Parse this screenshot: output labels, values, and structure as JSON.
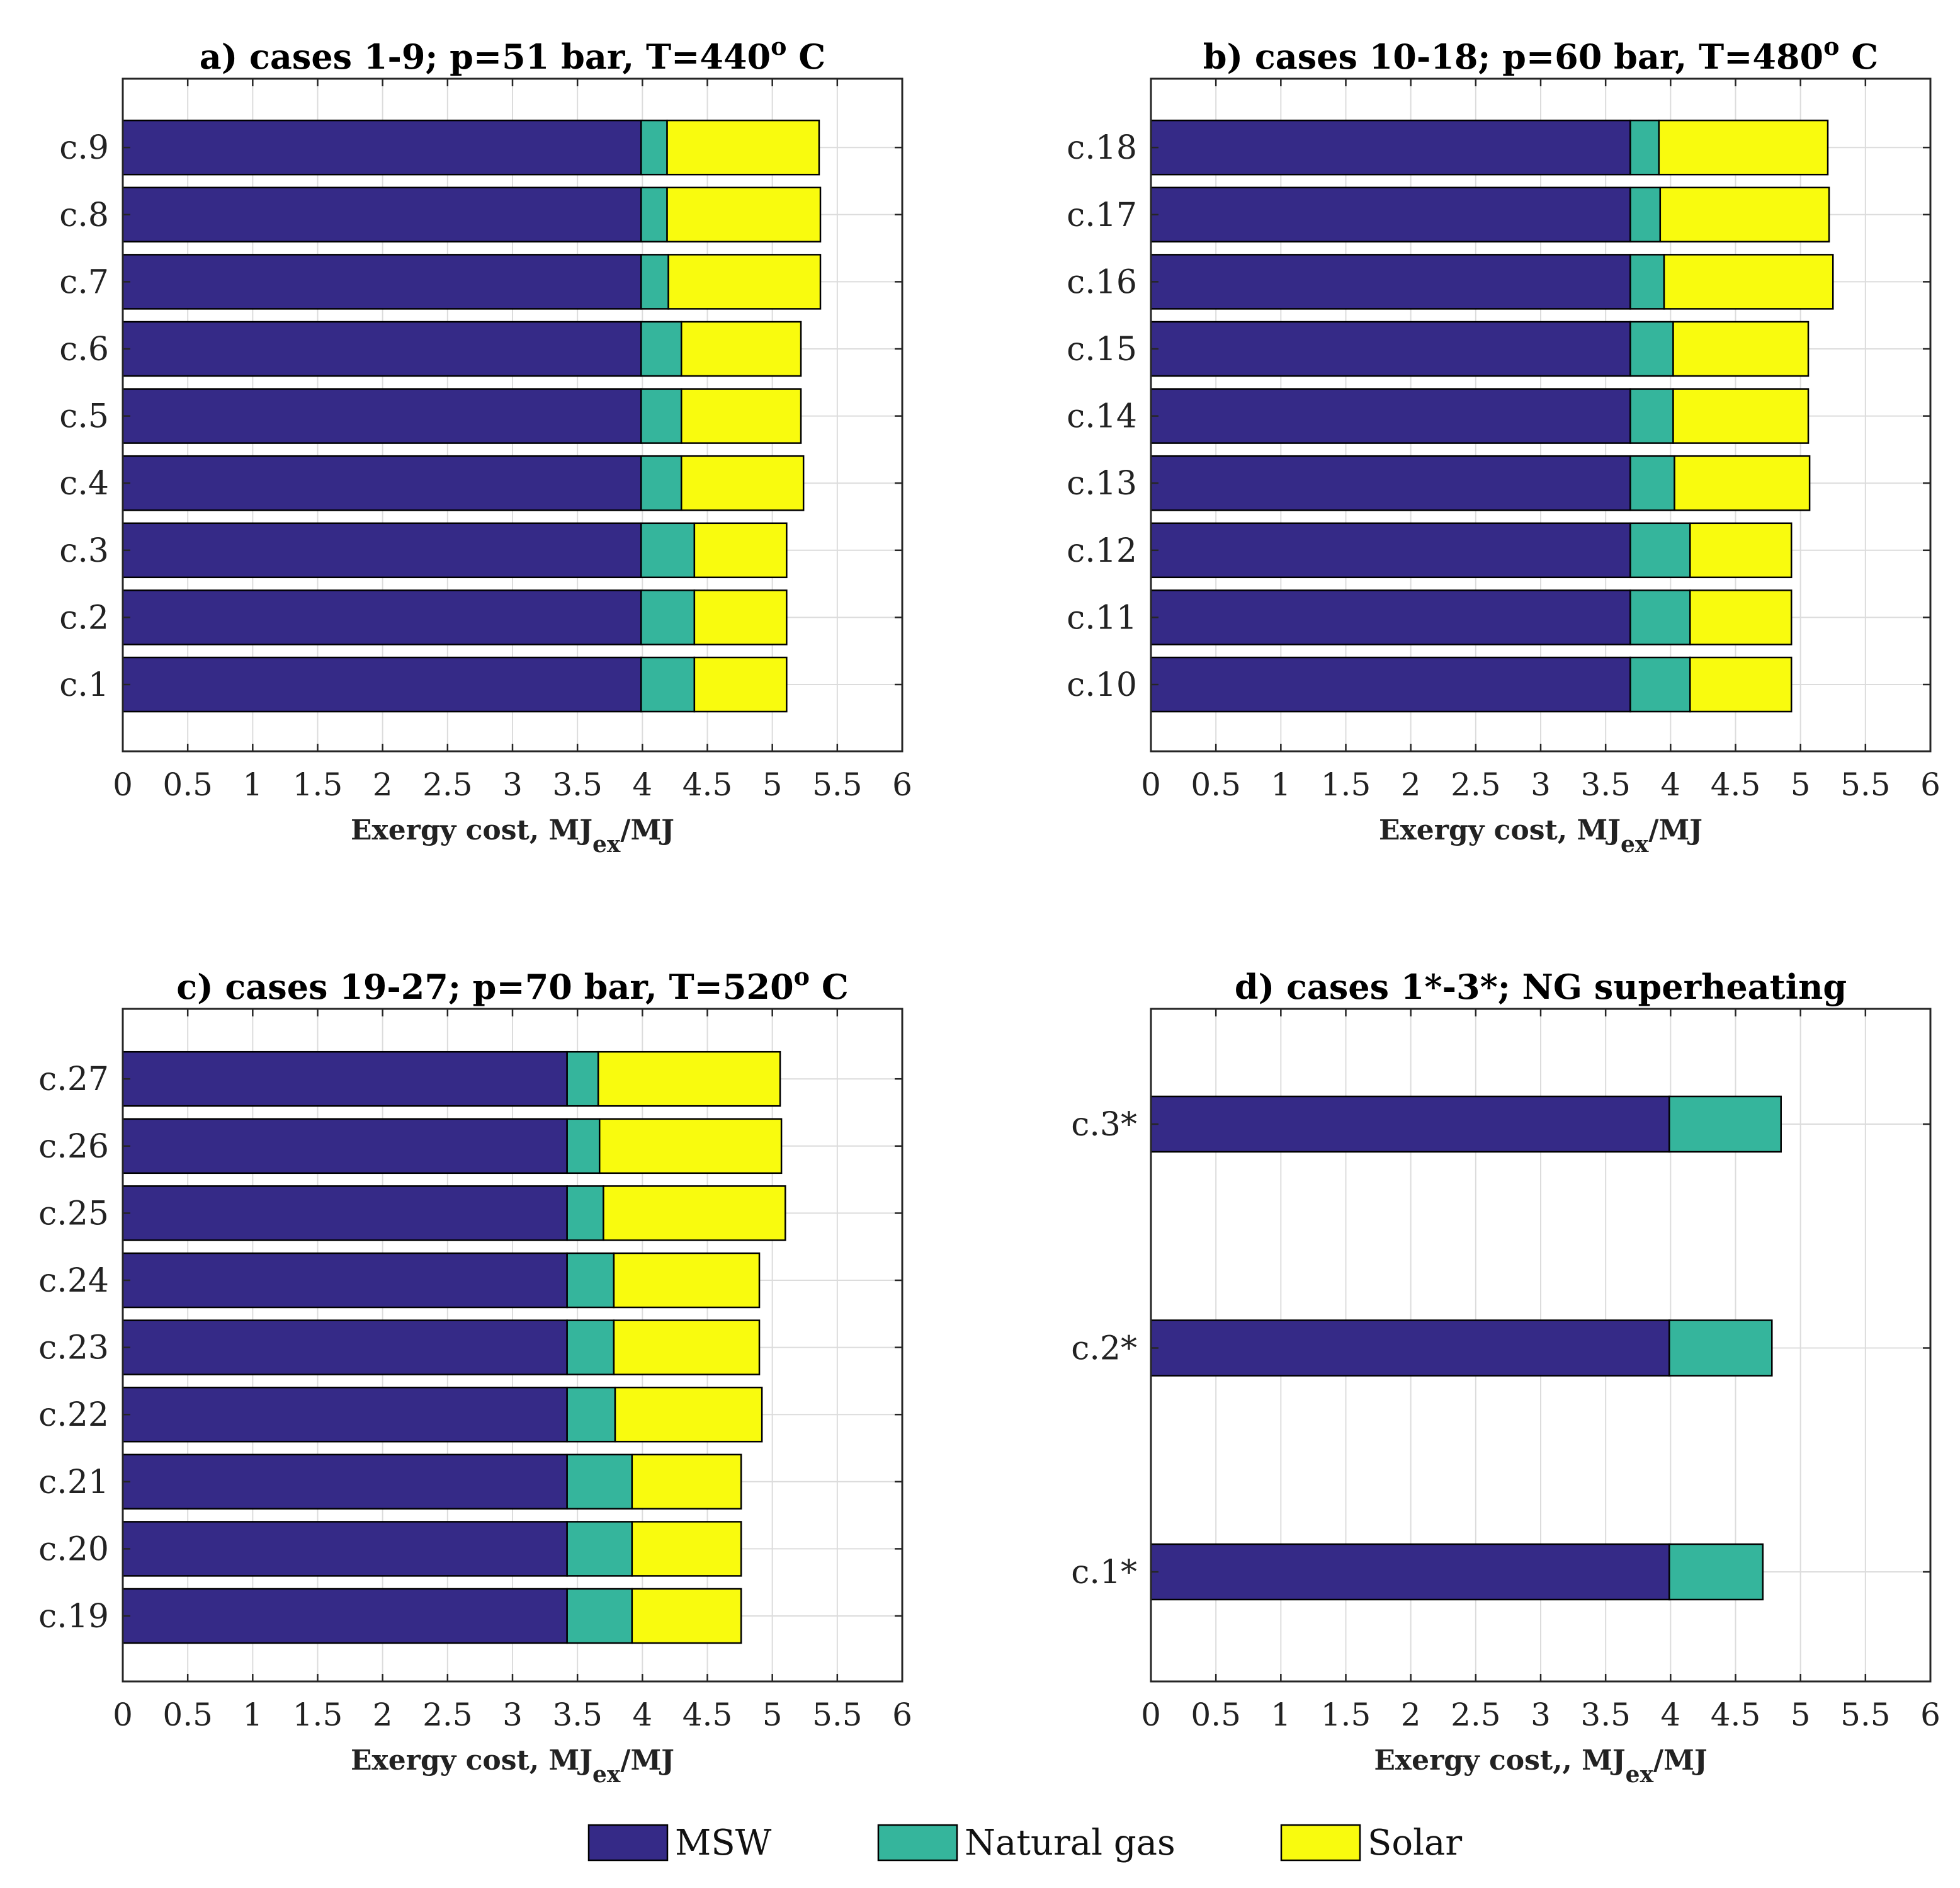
{
  "colors": {
    "MSW": "#352a87",
    "Natural gas": "#35b59c",
    "Solar": "#f9fb0e"
  },
  "legend": [
    "MSW",
    "Natural gas",
    "Solar"
  ],
  "chart_data": [
    {
      "type": "bar",
      "orientation": "horizontal",
      "stacked": true,
      "title": "a) cases 1-9; p=51 bar, T=440° C",
      "title_main": "a) cases 1-9; p=51 bar, T=440",
      "title_sup": "o",
      "title_tail": " C",
      "xlabel_main": "Exergy cost, MJ",
      "xlabel_sub": "ex",
      "xlabel_tail": "/MJ",
      "xlim": [
        0,
        6
      ],
      "xticks": [
        "0",
        "0.5",
        "1",
        "1.5",
        "2",
        "2.5",
        "3",
        "3.5",
        "4",
        "4.5",
        "5",
        "5.5",
        "6"
      ],
      "grid": true,
      "categories": [
        "c.1",
        "c.2",
        "c.3",
        "c.4",
        "c.5",
        "c.6",
        "c.7",
        "c.8",
        "c.9"
      ],
      "series": [
        {
          "name": "MSW",
          "values": [
            3.99,
            3.99,
            3.99,
            3.99,
            3.99,
            3.99,
            3.99,
            3.99,
            3.99
          ]
        },
        {
          "name": "Natural gas",
          "values": [
            0.41,
            0.41,
            0.41,
            0.31,
            0.31,
            0.31,
            0.21,
            0.2,
            0.2
          ]
        },
        {
          "name": "Solar",
          "values": [
            0.71,
            0.71,
            0.71,
            0.94,
            0.92,
            0.92,
            1.17,
            1.18,
            1.17
          ]
        }
      ]
    },
    {
      "type": "bar",
      "orientation": "horizontal",
      "stacked": true,
      "title": "b) cases 10-18; p=60 bar, T=480° C",
      "title_main": "b) cases 10-18; p=60 bar, T=480",
      "title_sup": "o",
      "title_tail": " C",
      "xlabel_main": "Exergy cost, MJ",
      "xlabel_sub": "ex",
      "xlabel_tail": "/MJ",
      "xlim": [
        0,
        6
      ],
      "xticks": [
        "0",
        "0.5",
        "1",
        "1.5",
        "2",
        "2.5",
        "3",
        "3.5",
        "4",
        "4.5",
        "5",
        "5.5",
        "6"
      ],
      "grid": true,
      "categories": [
        "c.10",
        "c.11",
        "c.12",
        "c.13",
        "c.14",
        "c.15",
        "c.16",
        "c.17",
        "c.18"
      ],
      "series": [
        {
          "name": "MSW",
          "values": [
            3.69,
            3.69,
            3.69,
            3.69,
            3.69,
            3.69,
            3.69,
            3.69,
            3.69
          ]
        },
        {
          "name": "Natural gas",
          "values": [
            0.46,
            0.46,
            0.46,
            0.34,
            0.33,
            0.33,
            0.26,
            0.23,
            0.22
          ]
        },
        {
          "name": "Solar",
          "values": [
            0.78,
            0.78,
            0.78,
            1.04,
            1.04,
            1.04,
            1.3,
            1.3,
            1.3
          ]
        }
      ]
    },
    {
      "type": "bar",
      "orientation": "horizontal",
      "stacked": true,
      "title": "c) cases 19-27; p=70 bar, T=520° C",
      "title_main": "c) cases 19-27; p=70 bar, T=520",
      "title_sup": "o",
      "title_tail": " C",
      "xlabel_main": "Exergy cost, MJ",
      "xlabel_sub": "ex",
      "xlabel_tail": "/MJ",
      "xlim": [
        0,
        6
      ],
      "xticks": [
        "0",
        "0.5",
        "1",
        "1.5",
        "2",
        "2.5",
        "3",
        "3.5",
        "4",
        "4.5",
        "5",
        "5.5",
        "6"
      ],
      "grid": true,
      "categories": [
        "c.19",
        "c.20",
        "c.21",
        "c.22",
        "c.23",
        "c.24",
        "c.25",
        "c.26",
        "c.27"
      ],
      "series": [
        {
          "name": "MSW",
          "values": [
            3.42,
            3.42,
            3.42,
            3.42,
            3.42,
            3.42,
            3.42,
            3.42,
            3.42
          ]
        },
        {
          "name": "Natural gas",
          "values": [
            0.5,
            0.5,
            0.5,
            0.37,
            0.36,
            0.36,
            0.28,
            0.25,
            0.24
          ]
        },
        {
          "name": "Solar",
          "values": [
            0.84,
            0.84,
            0.84,
            1.13,
            1.12,
            1.12,
            1.4,
            1.4,
            1.4
          ]
        }
      ]
    },
    {
      "type": "bar",
      "orientation": "horizontal",
      "stacked": true,
      "title": "d) cases 1*-3*; NG superheating",
      "title_main": "d) cases 1*-3*; NG superheating",
      "title_sup": "",
      "title_tail": "",
      "xlabel_main": "Exergy cost,, MJ",
      "xlabel_sub": "ex",
      "xlabel_tail": "/MJ",
      "xlim": [
        0,
        6
      ],
      "xticks": [
        "0",
        "0.5",
        "1",
        "1.5",
        "2",
        "2.5",
        "3",
        "3.5",
        "4",
        "4.5",
        "5",
        "5.5",
        "6"
      ],
      "grid": true,
      "categories": [
        "c.1*",
        "c.2*",
        "c.3*"
      ],
      "series": [
        {
          "name": "MSW",
          "values": [
            3.99,
            3.99,
            3.99
          ]
        },
        {
          "name": "Natural gas",
          "values": [
            0.72,
            0.79,
            0.86
          ]
        }
      ]
    }
  ]
}
